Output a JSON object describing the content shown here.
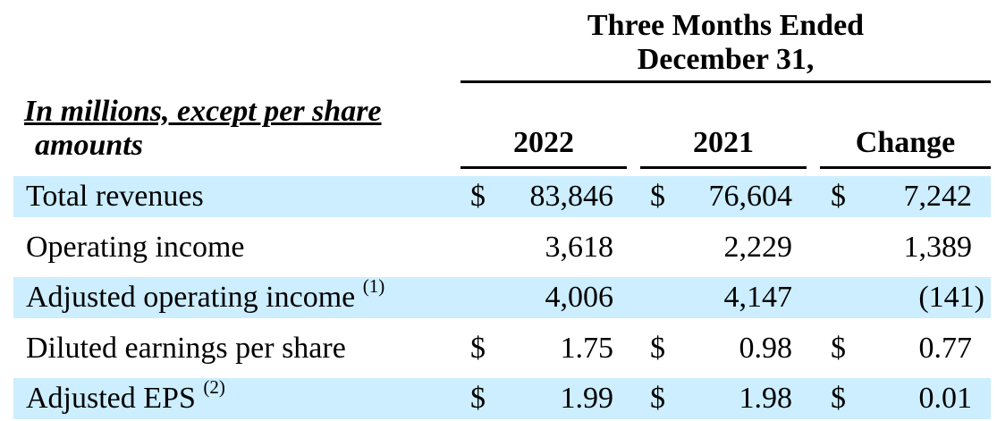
{
  "table": {
    "period_header_line1": "Three Months Ended",
    "period_header_line2": "December 31,",
    "units_label_line1": "In millions, except per share",
    "units_label_line2": "amounts",
    "columns": [
      "2022",
      "2021",
      "Change"
    ],
    "rows": [
      {
        "label": "Total revenues",
        "footnote": "",
        "dollar": "$",
        "v2022": "83,846",
        "v2021": "76,604",
        "change": "7,242",
        "shaded": true
      },
      {
        "label": "Operating income",
        "footnote": "",
        "dollar": "",
        "v2022": "3,618",
        "v2021": "2,229",
        "change": "1,389",
        "shaded": false
      },
      {
        "label": "Adjusted operating income",
        "footnote": "(1)",
        "dollar": "",
        "v2022": "4,006",
        "v2021": "4,147",
        "change": "(141)",
        "shaded": true
      },
      {
        "label": "Diluted earnings per share",
        "footnote": "",
        "dollar": "$",
        "v2022": "1.75",
        "v2021": "0.98",
        "change": "0.77",
        "shaded": false
      },
      {
        "label": "Adjusted EPS",
        "footnote": "(2)",
        "dollar": "$",
        "v2022": "1.99",
        "v2021": "1.98",
        "change": "0.01",
        "shaded": true
      }
    ]
  },
  "colors": {
    "row_shade": "#cceeff",
    "text": "#000000",
    "rule": "#000000"
  }
}
